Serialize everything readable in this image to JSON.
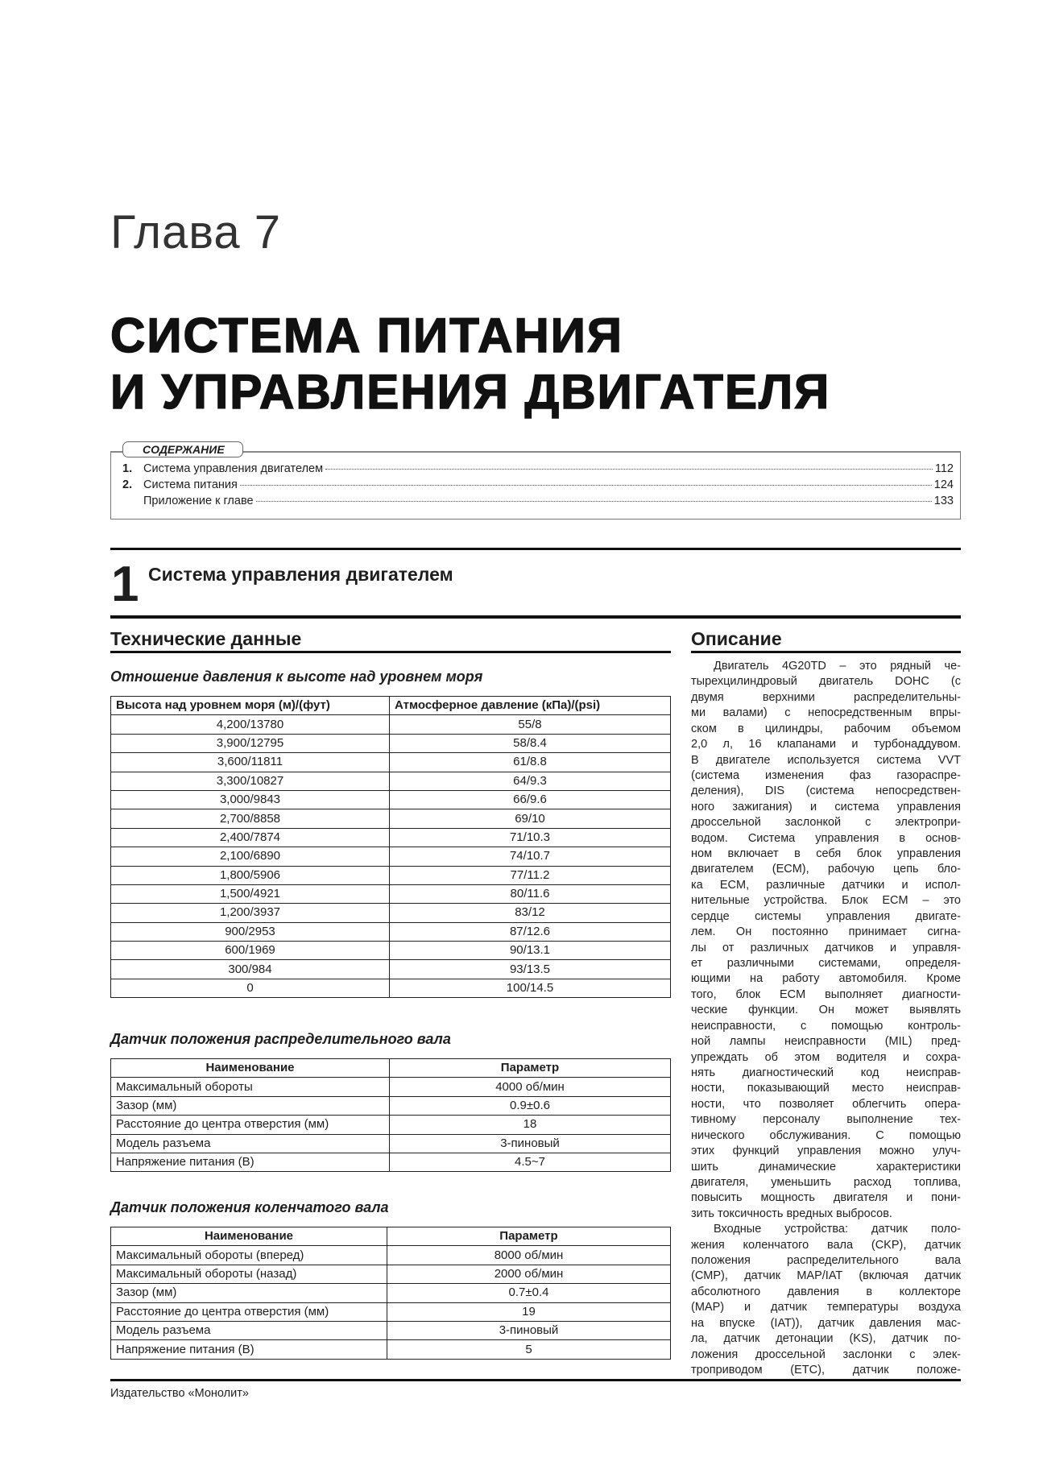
{
  "chapter": "Глава 7",
  "title_lines": [
    "СИСТЕМА ПИТАНИЯ",
    "И УПРАВЛЕНИЯ ДВИГАТЕЛЯ"
  ],
  "toc": {
    "heading": "СОДЕРЖАНИЕ",
    "items": [
      {
        "num": "1.",
        "label": "Система управления двигателем",
        "page": "112"
      },
      {
        "num": "2.",
        "label": "Система питания",
        "page": "124"
      },
      {
        "num": "",
        "label": "Приложение к главе",
        "page": "133"
      }
    ]
  },
  "section": {
    "number": "1",
    "title": "Система управления двигателем"
  },
  "tech": {
    "heading": "Технические данные",
    "table1": {
      "caption": "Отношение давления к высоте над уровнем моря",
      "headers": [
        "Высота над уровнем моря (м)/(фут)",
        "Атмосферное давление (кПа)/(psi)"
      ],
      "rows": [
        [
          "4,200/13780",
          "55/8"
        ],
        [
          "3,900/12795",
          "58/8.4"
        ],
        [
          "3,600/11811",
          "61/8.8"
        ],
        [
          "3,300/10827",
          "64/9.3"
        ],
        [
          "3,000/9843",
          "66/9.6"
        ],
        [
          "2,700/8858",
          "69/10"
        ],
        [
          "2,400/7874",
          "71/10.3"
        ],
        [
          "2,100/6890",
          "74/10.7"
        ],
        [
          "1,800/5906",
          "77/11.2"
        ],
        [
          "1,500/4921",
          "80/11.6"
        ],
        [
          "1,200/3937",
          "83/12"
        ],
        [
          "900/2953",
          "87/12.6"
        ],
        [
          "600/1969",
          "90/13.1"
        ],
        [
          "300/984",
          "93/13.5"
        ],
        [
          "0",
          "100/14.5"
        ]
      ]
    },
    "table2": {
      "caption": "Датчик положения распределительного вала",
      "headers": [
        "Наименование",
        "Параметр"
      ],
      "rows": [
        [
          "Максимальный обороты",
          "4000 об/мин"
        ],
        [
          "Зазор (мм)",
          "0.9±0.6"
        ],
        [
          "Расстояние до центра отверстия (мм)",
          "18"
        ],
        [
          "Модель разъема",
          "3-пиновый"
        ],
        [
          "Напряжение питания (В)",
          "4.5~7"
        ]
      ]
    },
    "table3": {
      "caption": "Датчик положения коленчатого вала",
      "headers": [
        "Наименование",
        "Параметр"
      ],
      "rows": [
        [
          "Максимальный обороты (вперед)",
          "8000 об/мин"
        ],
        [
          "Максимальный обороты (назад)",
          "2000 об/мин"
        ],
        [
          "Зазор (мм)",
          "0.7±0.4"
        ],
        [
          "Расстояние до центра отверстия (мм)",
          "19"
        ],
        [
          "Модель разъема",
          "3-пиновый"
        ],
        [
          "Напряжение питания (В)",
          "5"
        ]
      ]
    }
  },
  "description": {
    "heading": "Описание",
    "paragraphs": [
      [
        "Двигатель 4G20TD – это рядный че-",
        "тырехцилиндровый двигатель DOHC (с",
        "двумя верхними распределительны-",
        "ми валами) с непосредственным впры-",
        "ском в цилиндры, рабочим объемом",
        "2,0 л, 16 клапанами и турбонаддувом.",
        "В двигателе используется система VVT",
        "(система изменения фаз газораспре-",
        "деления), DIS (система непосредствен-",
        "ного зажигания) и система управления",
        "дроссельной заслонкой с электропри-",
        "водом. Система управления в основ-",
        "ном включает в себя блок управления",
        "двигателем (ECM), рабочую цепь бло-",
        "ка ECM, различные датчики и испол-",
        "нительные устройства. Блок ECM – это",
        "сердце системы управления двигате-",
        "лем. Он постоянно принимает сигна-",
        "лы от различных датчиков и управля-",
        "ет различными системами, определя-",
        "ющими на работу автомобиля. Кроме",
        "того, блок ECM выполняет диагности-",
        "ческие функции. Он может выявлять",
        "неисправности, с помощью контроль-",
        "ной лампы неисправности (MIL) пред-",
        "упреждать об этом водителя и сохра-",
        "нять диагностический код неисправ-",
        "ности, показывающий место неисправ-",
        "ности, что позволяет облегчить опера-",
        "тивному персоналу выполнение тех-",
        "нического обслуживания. С помощью",
        "этих функций управления можно улуч-",
        "шить динамические характеристики",
        "двигателя, уменьшить расход топлива,",
        "повысить мощность двигателя и пони-",
        "зить токсичность вредных выбросов."
      ],
      [
        "Входные устройства: датчик поло-",
        "жения коленчатого вала (CKP), датчик",
        "положения распределительного вала",
        "(CMP), датчик MAP/IAT (включая датчик",
        "абсолютного давления в коллекторе",
        "(MAP) и датчик температуры воздуха",
        "на впуске (IAT)), датчик давления мас-",
        "ла, датчик детонации (KS), датчик по-",
        "ложения дроссельной заслонки с элек-",
        "троприводом (ETC), датчик положе-"
      ]
    ]
  },
  "footer": "Издательство «Монолит»"
}
